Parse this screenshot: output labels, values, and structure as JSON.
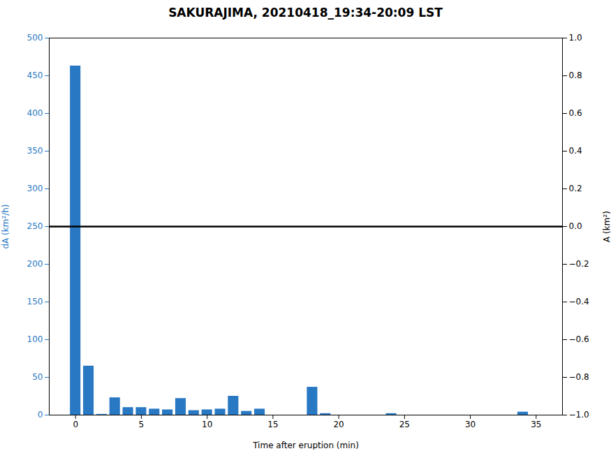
{
  "chart_data": {
    "type": "bar",
    "title": "SAKURAJIMA, 20210418_19:34-20:09 LST",
    "xlabel": "Time after eruption (min)",
    "ylabel": "dA (km²/h)",
    "y2label": "A (km²)",
    "x": [
      0,
      1,
      2,
      3,
      4,
      5,
      6,
      7,
      8,
      9,
      10,
      11,
      12,
      13,
      14,
      18,
      19,
      24,
      34
    ],
    "values": [
      463,
      65,
      1,
      23,
      10,
      10,
      8,
      7,
      22,
      6,
      7,
      8,
      25,
      5,
      8,
      37,
      2,
      2,
      4
    ],
    "color": "#2878c3",
    "xlim": [
      -2,
      37
    ],
    "xticks": [
      0,
      5,
      10,
      15,
      20,
      25,
      30,
      35
    ],
    "ylim": [
      0,
      500
    ],
    "yticks": [
      0,
      50,
      100,
      150,
      200,
      250,
      300,
      350,
      400,
      450,
      500
    ],
    "y2lim": [
      -1,
      1
    ],
    "y2ticks": [
      {
        "value": -1,
        "label": "−1.0"
      },
      {
        "value": -0.8,
        "label": "−0.8"
      },
      {
        "value": -0.6,
        "label": "−0.6"
      },
      {
        "value": -0.4,
        "label": "−0.4"
      },
      {
        "value": -0.2,
        "label": "−0.2"
      },
      {
        "value": 0,
        "label": "0.0"
      },
      0.2,
      0.4,
      0.6,
      0.8,
      {
        "value": 1,
        "label": "1.0"
      }
    ],
    "hline": {
      "y": 250,
      "color": "black"
    },
    "grid": false
  }
}
